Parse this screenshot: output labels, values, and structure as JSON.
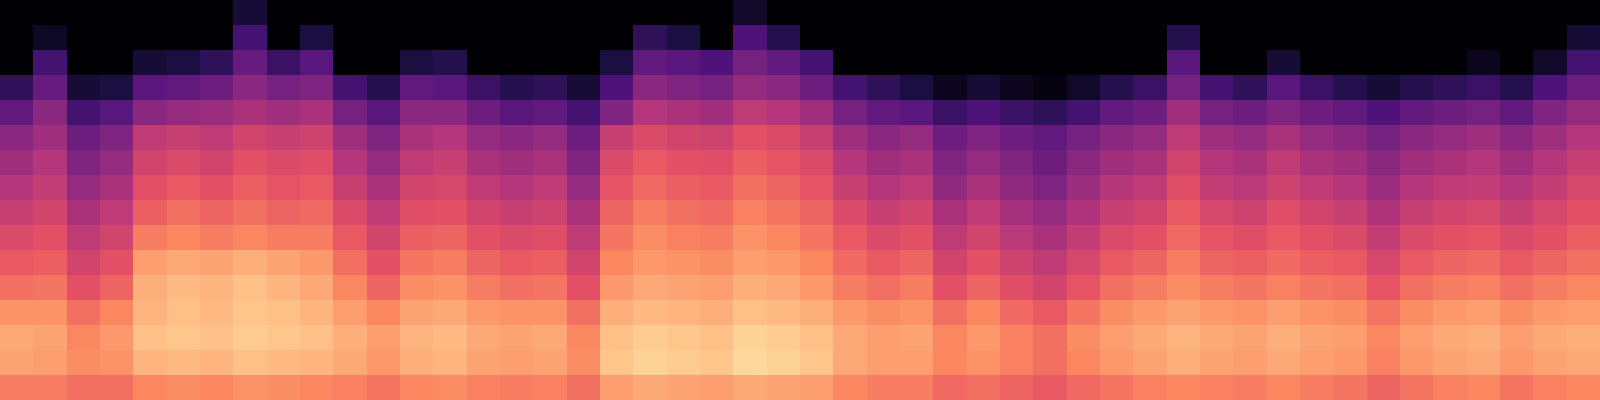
{
  "chart_data": {
    "type": "heatmap",
    "color": "magma",
    "tick_labels": false,
    "zlim": [
      -80,
      0
    ],
    "cells": [
      [
        -80,
        -80,
        -80,
        -80,
        -80,
        -80,
        -80,
        -72,
        -80,
        -80,
        -80,
        -80,
        -80,
        -80,
        -80,
        -80,
        -80,
        -80,
        -80,
        -80,
        -80,
        -80,
        -74,
        -80,
        -80,
        -80,
        -80,
        -80,
        -80,
        -80,
        -80,
        -80,
        -80,
        -80,
        -80,
        -80,
        -80,
        -80,
        -80,
        -80,
        -80,
        -80,
        -80,
        -80,
        -80,
        -80,
        -80,
        -80
      ],
      [
        -80,
        -75,
        -80,
        -80,
        -80,
        -80,
        -80,
        -62,
        -80,
        -70,
        -80,
        -80,
        -80,
        -80,
        -80,
        -80,
        -80,
        -80,
        -80,
        -66,
        -70,
        -80,
        -60,
        -68,
        -80,
        -80,
        -80,
        -80,
        -80,
        -80,
        -80,
        -80,
        -80,
        -80,
        -80,
        -68,
        -80,
        -80,
        -80,
        -80,
        -80,
        -80,
        -80,
        -80,
        -80,
        -80,
        -80,
        -72
      ],
      [
        -80,
        -62,
        -80,
        -80,
        -72,
        -70,
        -66,
        -55,
        -64,
        -58,
        -80,
        -80,
        -70,
        -68,
        -80,
        -80,
        -80,
        -80,
        -70,
        -56,
        -58,
        -60,
        -52,
        -56,
        -62,
        -80,
        -80,
        -80,
        -80,
        -80,
        -80,
        -80,
        -80,
        -80,
        -80,
        -58,
        -80,
        -80,
        -72,
        -80,
        -80,
        -80,
        -80,
        -80,
        -76,
        -80,
        -74,
        -62
      ],
      [
        -66,
        -55,
        -72,
        -70,
        -58,
        -56,
        -54,
        -48,
        -52,
        -50,
        -62,
        -68,
        -56,
        -58,
        -64,
        -68,
        -66,
        -72,
        -60,
        -48,
        -50,
        -52,
        -46,
        -48,
        -54,
        -62,
        -66,
        -70,
        -76,
        -72,
        -76,
        -78,
        -74,
        -68,
        -64,
        -52,
        -62,
        -66,
        -58,
        -64,
        -68,
        -72,
        -68,
        -66,
        -64,
        -68,
        -60,
        -54
      ],
      [
        -56,
        -48,
        -62,
        -58,
        -48,
        -46,
        -45,
        -42,
        -44,
        -42,
        -52,
        -58,
        -48,
        -48,
        -54,
        -58,
        -56,
        -62,
        -50,
        -40,
        -42,
        -44,
        -38,
        -40,
        -44,
        -52,
        -56,
        -58,
        -64,
        -60,
        -64,
        -66,
        -62,
        -56,
        -54,
        -44,
        -52,
        -54,
        -50,
        -54,
        -56,
        -60,
        -56,
        -54,
        -52,
        -56,
        -50,
        -46
      ],
      [
        -48,
        -44,
        -54,
        -50,
        -38,
        -36,
        -38,
        -34,
        -36,
        -35,
        -44,
        -50,
        -42,
        -40,
        -46,
        -48,
        -46,
        -54,
        -36,
        -32,
        -34,
        -35,
        -30,
        -32,
        -36,
        -44,
        -48,
        -46,
        -54,
        -50,
        -54,
        -56,
        -52,
        -48,
        -46,
        -38,
        -44,
        -46,
        -42,
        -46,
        -48,
        -52,
        -48,
        -46,
        -44,
        -48,
        -44,
        -40
      ],
      [
        -44,
        -40,
        -50,
        -46,
        -34,
        -32,
        -34,
        -30,
        -32,
        -31,
        -40,
        -46,
        -38,
        -36,
        -42,
        -44,
        -42,
        -50,
        -32,
        -28,
        -30,
        -31,
        -27,
        -29,
        -32,
        -40,
        -44,
        -42,
        -50,
        -46,
        -50,
        -54,
        -48,
        -44,
        -42,
        -34,
        -40,
        -42,
        -38,
        -42,
        -44,
        -48,
        -44,
        -42,
        -40,
        -44,
        -40,
        -36
      ],
      [
        -40,
        -37,
        -46,
        -42,
        -30,
        -28,
        -30,
        -27,
        -29,
        -28,
        -36,
        -42,
        -34,
        -33,
        -38,
        -40,
        -38,
        -46,
        -29,
        -25,
        -27,
        -28,
        -24,
        -26,
        -29,
        -36,
        -40,
        -38,
        -47,
        -42,
        -47,
        -50,
        -45,
        -40,
        -38,
        -31,
        -37,
        -39,
        -35,
        -38,
        -40,
        -45,
        -40,
        -38,
        -37,
        -40,
        -37,
        -33
      ],
      [
        -36,
        -34,
        -42,
        -38,
        -27,
        -24,
        -26,
        -24,
        -26,
        -25,
        -32,
        -38,
        -31,
        -30,
        -34,
        -36,
        -35,
        -42,
        -26,
        -22,
        -24,
        -25,
        -21,
        -23,
        -26,
        -32,
        -36,
        -34,
        -42,
        -38,
        -43,
        -46,
        -41,
        -36,
        -34,
        -28,
        -33,
        -35,
        -31,
        -34,
        -36,
        -41,
        -36,
        -34,
        -33,
        -36,
        -33,
        -30
      ],
      [
        -32,
        -30,
        -38,
        -34,
        -22,
        -20,
        -22,
        -20,
        -22,
        -22,
        -28,
        -34,
        -27,
        -26,
        -30,
        -32,
        -31,
        -38,
        -23,
        -19,
        -21,
        -22,
        -18,
        -20,
        -23,
        -28,
        -32,
        -30,
        -38,
        -34,
        -39,
        -42,
        -37,
        -32,
        -30,
        -25,
        -29,
        -31,
        -28,
        -30,
        -32,
        -37,
        -32,
        -30,
        -29,
        -32,
        -30,
        -27
      ],
      [
        -28,
        -27,
        -34,
        -30,
        -16,
        -14,
        -15,
        -13,
        -15,
        -17,
        -24,
        -30,
        -23,
        -22,
        -26,
        -28,
        -27,
        -34,
        -20,
        -17,
        -18,
        -19,
        -16,
        -17,
        -20,
        -25,
        -28,
        -26,
        -34,
        -30,
        -35,
        -38,
        -33,
        -28,
        -26,
        -22,
        -26,
        -27,
        -25,
        -27,
        -28,
        -33,
        -28,
        -26,
        -25,
        -28,
        -26,
        -24
      ],
      [
        -24,
        -23,
        -30,
        -26,
        -13,
        -11,
        -12,
        -10,
        -12,
        -14,
        -20,
        -26,
        -19,
        -18,
        -22,
        -24,
        -23,
        -30,
        -17,
        -14,
        -15,
        -16,
        -13,
        -14,
        -17,
        -22,
        -24,
        -22,
        -30,
        -26,
        -31,
        -34,
        -29,
        -24,
        -22,
        -19,
        -22,
        -23,
        -21,
        -23,
        -24,
        -29,
        -24,
        -22,
        -21,
        -24,
        -22,
        -20
      ],
      [
        -18,
        -18,
        -24,
        -20,
        -12,
        -10,
        -11,
        -9,
        -10,
        -12,
        -16,
        -20,
        -15,
        -14,
        -17,
        -18,
        -18,
        -24,
        -13,
        -11,
        -12,
        -13,
        -10,
        -11,
        -13,
        -17,
        -19,
        -18,
        -24,
        -20,
        -25,
        -28,
        -23,
        -19,
        -17,
        -15,
        -17,
        -18,
        -16,
        -18,
        -19,
        -23,
        -19,
        -17,
        -16,
        -19,
        -17,
        -16
      ],
      [
        -14,
        -15,
        -20,
        -17,
        -10,
        -9,
        -10,
        -8,
        -9,
        -10,
        -13,
        -16,
        -12,
        -11,
        -14,
        -15,
        -14,
        -20,
        -10,
        -8,
        -9,
        -10,
        -7,
        -8,
        -10,
        -14,
        -16,
        -15,
        -20,
        -17,
        -21,
        -24,
        -19,
        -16,
        -14,
        -12,
        -14,
        -15,
        -13,
        -15,
        -16,
        -20,
        -16,
        -14,
        -13,
        -16,
        -14,
        -13
      ],
      [
        -15,
        -16,
        -19,
        -18,
        -12,
        -11,
        -12,
        -10,
        -11,
        -12,
        -14,
        -17,
        -13,
        -12,
        -15,
        -16,
        -15,
        -19,
        -9,
        -7,
        -8,
        -9,
        -6,
        -7,
        -9,
        -14,
        -16,
        -16,
        -20,
        -18,
        -21,
        -24,
        -20,
        -17,
        -15,
        -13,
        -15,
        -16,
        -14,
        -16,
        -17,
        -21,
        -17,
        -15,
        -14,
        -17,
        -15,
        -14
      ],
      [
        -22,
        -22,
        -24,
        -24,
        -20,
        -19,
        -20,
        -18,
        -19,
        -20,
        -21,
        -23,
        -20,
        -19,
        -21,
        -22,
        -21,
        -24,
        -16,
        -14,
        -15,
        -16,
        -14,
        -15,
        -16,
        -20,
        -22,
        -22,
        -25,
        -24,
        -26,
        -28,
        -25,
        -23,
        -21,
        -20,
        -21,
        -22,
        -20,
        -22,
        -23,
        -26,
        -23,
        -21,
        -20,
        -23,
        -21,
        -20
      ]
    ]
  }
}
